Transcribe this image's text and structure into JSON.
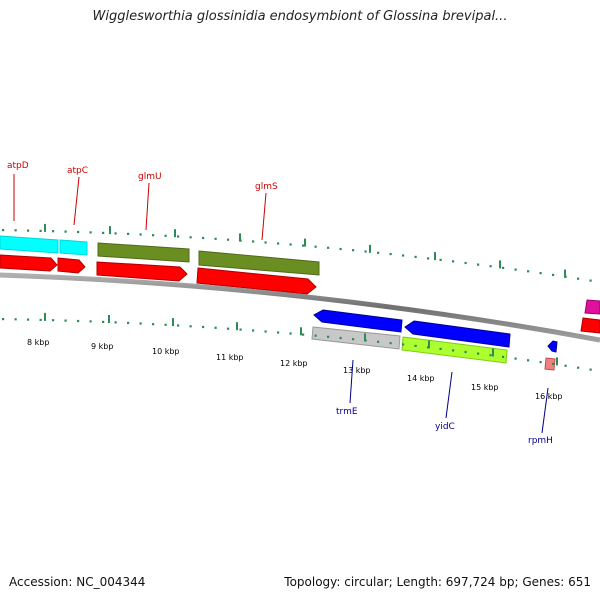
{
  "title": "Wigglesworthia glossinidia endosymbiont of Glossina brevipal...",
  "footer": {
    "accession": "Accession: NC_004344",
    "summary": "Topology: circular; Length: 697,724 bp; Genes: 651"
  },
  "scale_labels": [
    "8 kbp",
    "9 kbp",
    "10 kbp",
    "11 kbp",
    "12 kbp",
    "13 kbp",
    "14 kbp",
    "15 kbp",
    "16 kbp"
  ],
  "gene_labels": [
    {
      "name": "atpD",
      "strand": "forward"
    },
    {
      "name": "atpC",
      "strand": "forward"
    },
    {
      "name": "glmU",
      "strand": "forward"
    },
    {
      "name": "glmS",
      "strand": "forward"
    },
    {
      "name": "trmE",
      "strand": "reverse"
    },
    {
      "name": "yidC",
      "strand": "reverse"
    },
    {
      "name": "rpmH",
      "strand": "reverse"
    }
  ],
  "colors": {
    "forward_label": "#cc0000",
    "reverse_label": "#00008b",
    "cds_red": "#ff0000",
    "olive": "#6b8e23",
    "cyan": "#00ffff",
    "blue": "#0000ff",
    "gray": "#c0c0c0",
    "lime": "#adff2f",
    "magenta": "#e0109f",
    "pink": "#f08080",
    "tick_green": "#2e8b57"
  }
}
